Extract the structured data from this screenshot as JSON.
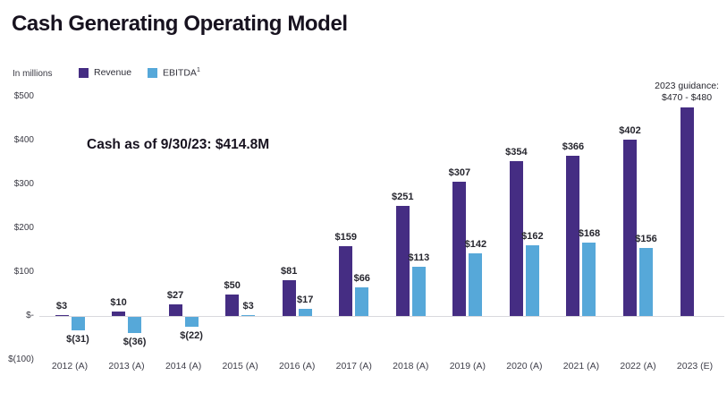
{
  "title": "Cash Generating Operating Model",
  "legend": {
    "units_label": "In millions",
    "series": [
      {
        "label": "Revenue",
        "sup": "",
        "color": "#452d83"
      },
      {
        "label": "EBITDA",
        "sup": "1",
        "color": "#56a8d9"
      }
    ]
  },
  "annotation": "Cash as of 9/30/23: $414.8M",
  "guidance": {
    "line1": "2023 guidance:",
    "line2": "$470 - $480"
  },
  "y_axis": {
    "ticks": [
      "$500",
      "$400",
      "$300",
      "$200",
      "$100",
      "$-",
      "$(100)"
    ],
    "values": [
      500,
      400,
      300,
      200,
      100,
      0,
      -100
    ]
  },
  "chart_data": {
    "type": "bar",
    "title": "Cash Generating Operating Model",
    "xlabel": "",
    "ylabel": "In millions",
    "ylim": [
      -100,
      500
    ],
    "grid": false,
    "legend_position": "top-left",
    "categories": [
      "2012 (A)",
      "2013 (A)",
      "2014 (A)",
      "2015 (A)",
      "2016 (A)",
      "2017 (A)",
      "2018 (A)",
      "2019 (A)",
      "2020 (A)",
      "2021 (A)",
      "2022 (A)",
      "2023 (E)"
    ],
    "series": [
      {
        "name": "Revenue",
        "color": "#452d83",
        "values": [
          3,
          10,
          27,
          50,
          81,
          159,
          251,
          307,
          354,
          366,
          402,
          475
        ],
        "labels": [
          "$3",
          "$10",
          "$27",
          "$50",
          "$81",
          "$159",
          "$251",
          "$307",
          "$354",
          "$366",
          "$402",
          null
        ]
      },
      {
        "name": "EBITDA",
        "color": "#56a8d9",
        "values": [
          -31,
          -36,
          -22,
          3,
          17,
          66,
          113,
          142,
          162,
          168,
          156,
          null
        ],
        "labels": [
          "$(31)",
          "$(36)",
          "$(22)",
          "$3",
          "$17",
          "$66",
          "$113",
          "$142",
          "$162",
          "$168",
          "$156",
          null
        ]
      }
    ]
  }
}
